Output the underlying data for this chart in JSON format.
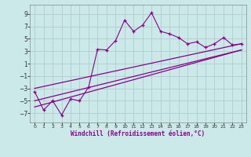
{
  "xlabel": "Windchill (Refroidissement éolien,°C)",
  "xlim": [
    -0.5,
    23.5
  ],
  "ylim": [
    -8.5,
    10.5
  ],
  "yticks": [
    -7,
    -5,
    -3,
    -1,
    1,
    3,
    5,
    7,
    9
  ],
  "xticks": [
    0,
    1,
    2,
    3,
    4,
    5,
    6,
    7,
    8,
    9,
    10,
    11,
    12,
    13,
    14,
    15,
    16,
    17,
    18,
    19,
    20,
    21,
    22,
    23
  ],
  "bg_color": "#cce9e9",
  "grid_color": "#b0cccc",
  "line_color": "#880088",
  "jagged_x": [
    0,
    1,
    2,
    3,
    4,
    5,
    6,
    7,
    8,
    9,
    10,
    11,
    12,
    13,
    14,
    15,
    16,
    17,
    18,
    19,
    20,
    21,
    22,
    23
  ],
  "jagged_y": [
    -3.5,
    -6.5,
    -5.0,
    -7.3,
    -4.7,
    -5.0,
    -2.8,
    3.3,
    3.2,
    4.7,
    8.0,
    6.2,
    7.2,
    9.2,
    6.2,
    5.8,
    5.2,
    4.2,
    4.5,
    3.6,
    4.2,
    5.2,
    4.0,
    4.2
  ],
  "line1_x": [
    0,
    23
  ],
  "line1_y": [
    -6.0,
    3.2
  ],
  "line2_x": [
    0,
    23
  ],
  "line2_y": [
    -5.0,
    3.2
  ],
  "line3_x": [
    0,
    23
  ],
  "line3_y": [
    -3.0,
    4.2
  ]
}
